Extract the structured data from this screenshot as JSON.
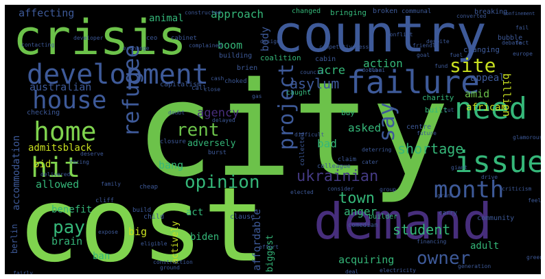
{
  "wordcloud": {
    "background": "#000000",
    "palette": {
      "green": "#6cc24a",
      "lime": "#7fd34e",
      "teal": "#35b779",
      "blue": "#3e5a99",
      "purple": "#472e7c",
      "indigo": "#443a83",
      "yellow": "#c8e020",
      "cyan": "#2a9d8f"
    },
    "words": [
      {
        "text": "city",
        "color": "#6cc24a"
      },
      {
        "text": "cost",
        "color": "#7fd34e"
      },
      {
        "text": "country",
        "color": "#3e5a99"
      },
      {
        "text": "crisis",
        "color": "#6cc24a"
      },
      {
        "text": "demand",
        "color": "#472e7c"
      },
      {
        "text": "development",
        "color": "#3e5a99"
      },
      {
        "text": "failure",
        "color": "#3e5a99"
      },
      {
        "text": "house",
        "color": "#3e5a99"
      },
      {
        "text": "home",
        "color": "#7fd34e"
      },
      {
        "text": "need",
        "color": "#35b779"
      },
      {
        "text": "hit",
        "color": "#7fd34e"
      },
      {
        "text": "issue",
        "color": "#35b779"
      },
      {
        "text": "month",
        "color": "#3e5a99"
      },
      {
        "text": "rent",
        "color": "#6cc24a"
      },
      {
        "text": "site",
        "color": "#c8e020"
      },
      {
        "text": "refugee",
        "color": "#3e5a99"
      },
      {
        "text": "project",
        "color": "#3e5a99"
      },
      {
        "text": "say",
        "color": "#3e5a99"
      },
      {
        "text": "opinion",
        "color": "#35b779"
      },
      {
        "text": "ukrainian",
        "color": "#443a83"
      },
      {
        "text": "pay",
        "color": "#35b779"
      },
      {
        "text": "owner",
        "color": "#3e5a99"
      },
      {
        "text": "shortage",
        "color": "#35b779"
      },
      {
        "text": "student",
        "color": "#35b779"
      },
      {
        "text": "town",
        "color": "#35b779"
      },
      {
        "text": "anger",
        "color": "#35b779"
      },
      {
        "text": "affecting",
        "color": "#3e5a99"
      },
      {
        "text": "approach",
        "color": "#35b779"
      },
      {
        "text": "animal",
        "color": "#35b779"
      },
      {
        "text": "boom",
        "color": "#35b779"
      },
      {
        "text": "body",
        "color": "#3e5a99"
      },
      {
        "text": "acre",
        "color": "#35b779"
      },
      {
        "text": "action",
        "color": "#35b779"
      },
      {
        "text": "appeal",
        "color": "#3e5a99"
      },
      {
        "text": "billion",
        "color": "#c8e020"
      },
      {
        "text": "australian",
        "color": "#3e5a99"
      },
      {
        "text": "asylum",
        "color": "#3e5a99"
      },
      {
        "text": "amid",
        "color": "#6cc24a"
      },
      {
        "text": "agency",
        "color": "#472e7c"
      },
      {
        "text": "african",
        "color": "#c8e020"
      },
      {
        "text": "accommodation",
        "color": "#3e5a99"
      },
      {
        "text": "admitsblack",
        "color": "#c8e020"
      },
      {
        "text": "adversely",
        "color": "#35b779"
      },
      {
        "text": "asked",
        "color": "#35b779"
      },
      {
        "text": "bad",
        "color": "#35b779"
      },
      {
        "text": "bid",
        "color": "#c8e020"
      },
      {
        "text": "bang",
        "color": "#35b779"
      },
      {
        "text": "allowed",
        "color": "#35b779"
      },
      {
        "text": "act",
        "color": "#35b779"
      },
      {
        "text": "benefit",
        "color": "#35b779"
      },
      {
        "text": "big",
        "color": "#c8e020"
      },
      {
        "text": "biden",
        "color": "#35b779"
      },
      {
        "text": "berlin",
        "color": "#3e5a99"
      },
      {
        "text": "brain",
        "color": "#35b779"
      },
      {
        "text": "ban",
        "color": "#35b779"
      },
      {
        "text": "actively",
        "color": "#c8e020"
      },
      {
        "text": "affordable",
        "color": "#3e5a99"
      },
      {
        "text": "biggest",
        "color": "#35b779"
      },
      {
        "text": "acquiring",
        "color": "#35b779"
      },
      {
        "text": "adult",
        "color": "#35b779"
      },
      {
        "text": "changed",
        "color": "#35b779"
      },
      {
        "text": "bringing",
        "color": "#35b779"
      },
      {
        "text": "broken",
        "color": "#3e5a99"
      },
      {
        "text": "communal",
        "color": "#3e5a99"
      },
      {
        "text": "breaking",
        "color": "#3e5a99"
      },
      {
        "text": "changing",
        "color": "#3e5a99"
      },
      {
        "text": "builder",
        "color": "#35b779"
      },
      {
        "text": "community",
        "color": "#3e5a99"
      },
      {
        "text": "charity",
        "color": "#35b779"
      },
      {
        "text": "built",
        "color": "#35b779"
      },
      {
        "text": "buy",
        "color": "#35b779"
      },
      {
        "text": "caught",
        "color": "#35b779"
      },
      {
        "text": "coalition",
        "color": "#35b779"
      },
      {
        "text": "cabin",
        "color": "#3e5a99"
      },
      {
        "text": "brien",
        "color": "#3e5a99"
      },
      {
        "text": "building",
        "color": "#3e5a99"
      },
      {
        "text": "capitalism",
        "color": "#3e5a99"
      },
      {
        "text": "bubble",
        "color": "#3e5a99"
      },
      {
        "text": "checking",
        "color": "#3e5a99"
      },
      {
        "text": "cliff",
        "color": "#3e5a99"
      },
      {
        "text": "clause",
        "color": "#3e5a99"
      },
      {
        "text": "child",
        "color": "#3e5a99"
      },
      {
        "text": "build",
        "color": "#3e5a99"
      },
      {
        "text": "cheap",
        "color": "#3e5a99"
      },
      {
        "text": "colleague",
        "color": "#3e5a99"
      },
      {
        "text": "collected",
        "color": "#3e5a99"
      },
      {
        "text": "claim",
        "color": "#3e5a99"
      },
      {
        "text": "centre",
        "color": "#3e5a99"
      },
      {
        "text": "comedian",
        "color": "#3e5a99"
      },
      {
        "text": "call",
        "color": "#3e5a99"
      },
      {
        "text": "choked",
        "color": "#3e5a99"
      },
      {
        "text": "burst",
        "color": "#3e5a99"
      },
      {
        "text": "closure",
        "color": "#3e5a99"
      },
      {
        "text": "carry",
        "color": "#3e5a99"
      },
      {
        "text": "ceo",
        "color": "#3e5a99"
      },
      {
        "text": "cabinet",
        "color": "#3e5a99"
      },
      {
        "text": "constructed",
        "color": "#3e5a99"
      },
      {
        "text": "converted",
        "color": "#3e5a99"
      },
      {
        "text": "confinement",
        "color": "#3e5a99"
      },
      {
        "text": "difficult",
        "color": "#3e5a99"
      },
      {
        "text": "deterring",
        "color": "#3e5a99"
      },
      {
        "text": "ground",
        "color": "#3e5a99"
      },
      {
        "text": "eligible",
        "color": "#3e5a99"
      },
      {
        "text": "electricity",
        "color": "#3e5a99"
      },
      {
        "text": "generation",
        "color": "#3e5a99"
      },
      {
        "text": "criticism",
        "color": "#3e5a99"
      },
      {
        "text": "consider",
        "color": "#3e5a99"
      },
      {
        "text": "grant",
        "color": "#3e5a99"
      },
      {
        "text": "fuel",
        "color": "#3e5a99"
      },
      {
        "text": "group",
        "color": "#3e5a99"
      },
      {
        "text": "deserve",
        "color": "#3e5a99"
      },
      {
        "text": "doubt",
        "color": "#3e5a99"
      },
      {
        "text": "delayed",
        "color": "#3e5a99"
      },
      {
        "text": "developer",
        "color": "#3e5a99"
      },
      {
        "text": "exchange",
        "color": "#3e5a99"
      },
      {
        "text": "complained",
        "color": "#3e5a99"
      },
      {
        "text": "design",
        "color": "#3e5a99"
      },
      {
        "text": "despite",
        "color": "#3e5a99"
      },
      {
        "text": "council",
        "color": "#3e5a99"
      },
      {
        "text": "fail",
        "color": "#3e5a99"
      },
      {
        "text": "contacting",
        "color": "#3e5a99"
      },
      {
        "text": "competitiveness",
        "color": "#3e5a99"
      },
      {
        "text": "delivered",
        "color": "#3e5a99"
      },
      {
        "text": "facing",
        "color": "#3e5a99"
      },
      {
        "text": "debate",
        "color": "#3e5a99"
      },
      {
        "text": "family",
        "color": "#3e5a99"
      },
      {
        "text": "drive",
        "color": "#3e5a99"
      },
      {
        "text": "giant",
        "color": "#3e5a99"
      },
      {
        "text": "europe",
        "color": "#3e5a99"
      },
      {
        "text": "expose",
        "color": "#3e5a99"
      },
      {
        "text": "deal",
        "color": "#3e5a99"
      },
      {
        "text": "cut",
        "color": "#3e5a99"
      },
      {
        "text": "green",
        "color": "#3e5a99"
      },
      {
        "text": "financing",
        "color": "#3e5a99"
      },
      {
        "text": "feel",
        "color": "#3e5a99"
      },
      {
        "text": "fairly",
        "color": "#3e5a99"
      },
      {
        "text": "gas",
        "color": "#3e5a99"
      },
      {
        "text": "fact",
        "color": "#3e5a99"
      },
      {
        "text": "friendly",
        "color": "#3e5a99"
      },
      {
        "text": "elected",
        "color": "#3e5a99"
      },
      {
        "text": "dollar",
        "color": "#3e5a99"
      },
      {
        "text": "glamorous",
        "color": "#3e5a99"
      },
      {
        "text": "cater",
        "color": "#3e5a99"
      },
      {
        "text": "dubai",
        "color": "#3e5a99"
      },
      {
        "text": "effort",
        "color": "#3e5a99"
      },
      {
        "text": "close",
        "color": "#3e5a99"
      },
      {
        "text": "conflict",
        "color": "#3e5a99"
      },
      {
        "text": "cash",
        "color": "#3e5a99"
      },
      {
        "text": "construction",
        "color": "#3e5a99"
      },
      {
        "text": "goal",
        "color": "#3e5a99"
      },
      {
        "text": "fund",
        "color": "#3e5a99"
      },
      {
        "text": "future",
        "color": "#3e5a99"
      }
    ]
  }
}
